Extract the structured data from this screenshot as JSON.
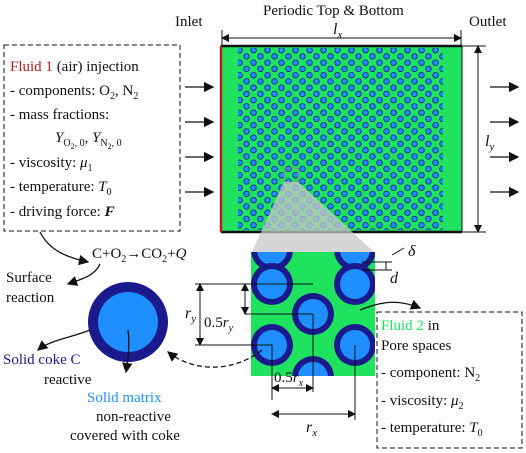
{
  "top_labels": {
    "inlet": "Inlet",
    "periodic": "Periodic Top & Bottom",
    "outlet": "Outlet",
    "lx": "l",
    "lx_sub": "x",
    "ly": "l",
    "ly_sub": "y"
  },
  "fluid1": {
    "title_colored": "Fluid 1",
    "title_rest": " (air) injection",
    "components_prefix": "- components: O",
    "components_o_sub": "2",
    "components_sep": ", N",
    "components_n_sub": "2",
    "mass_fractions": "- mass fractions:",
    "y_o2": "Y",
    "y_o2_sub": "O",
    "y_o2_sub2": "2",
    "y_o2_zero": ", 0",
    "y_n2": "Y",
    "y_n2_sub": "N",
    "y_n2_sub2": "2",
    "y_n2_zero": ", 0",
    "viscosity": "- viscosity: ",
    "mu": "μ",
    "mu_sub": "1",
    "temperature": "- temperature: ",
    "t0": "T",
    "t0_sub": "0",
    "driving": "- driving force: ",
    "force": "F"
  },
  "reaction": {
    "lhs": "C+O",
    "o2_sub": "2",
    "arrow": "→",
    "co2": "CO",
    "co2_sub": "2",
    "plus_q": "+",
    "q": "Q",
    "surface1": "Surface",
    "surface2": "reaction"
  },
  "solid": {
    "coke1": "Solid coke C",
    "coke2": "reactive",
    "matrix1": "Solid matrix",
    "matrix2": "non-reactive",
    "matrix3": "covered with coke"
  },
  "pore": {
    "delta": "δ",
    "d": "d",
    "ry": "r",
    "ry_sub": "y",
    "half_ry": "0.5",
    "half_ry_r": "r",
    "half_ry_sub": "y",
    "half_rx": "0.5",
    "half_rx_r": "r",
    "half_rx_sub": "x",
    "rx": "r",
    "rx_sub": "x"
  },
  "fluid2": {
    "title_colored": "Fluid 2",
    "title_rest": " in",
    "line2": "Pore spaces",
    "component": "- component: N",
    "component_sub": "2",
    "viscosity": "- viscosity: ",
    "mu": "μ",
    "mu_sub": "2",
    "temperature": "- temperature: ",
    "t0": "T",
    "t0_sub": "0"
  },
  "colors": {
    "fluid1_title": "#b0201e",
    "fluid2_title": "#19e35a",
    "pore_green": "#1fe35f",
    "grain_blue": "#1f8fff",
    "coke_navy": "#1a1a8c",
    "solid_matrix_label": "#1f8fff",
    "solid_coke_label": "#1a1a8c"
  }
}
